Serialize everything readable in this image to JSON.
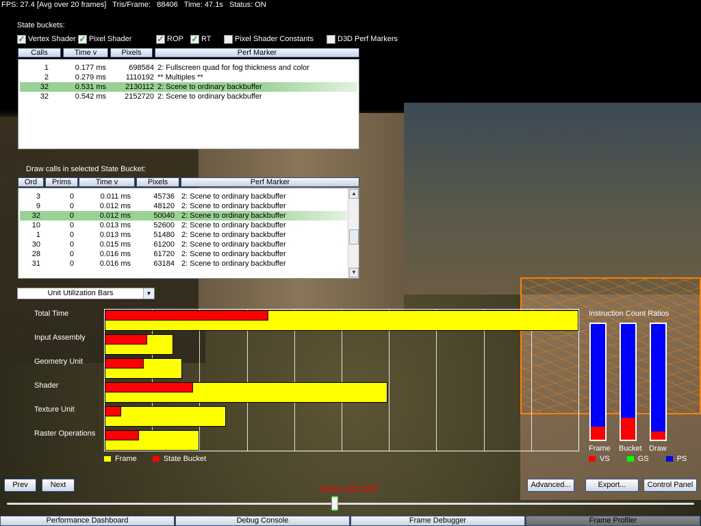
{
  "status_bar": {
    "text": "FPS: 27.4 [Avg over 20 frames]   Tris/Frame:   88406   Time: 47.1s   Status: ON"
  },
  "state_buckets": {
    "label": "State buckets:",
    "filters": [
      {
        "label": "Vertex Shader",
        "checked": true
      },
      {
        "label": "Pixel Shader",
        "checked": true
      },
      {
        "label": "ROP",
        "checked": true
      },
      {
        "label": "RT",
        "checked": true
      },
      {
        "label": "Pixel Shader Constants",
        "checked": false
      },
      {
        "label": "D3D Perf Markers",
        "checked": false
      }
    ],
    "columns": [
      "Calls",
      "Time  v",
      "Pixels",
      "Perf Marker"
    ],
    "rows": [
      {
        "calls": "1",
        "time": "0.177 ms",
        "pixels": "698584",
        "marker": "2: Fullscreen quad for fog thickness and color"
      },
      {
        "calls": "2",
        "time": "0.279 ms",
        "pixels": "1110192",
        "marker": "** Multiples **"
      },
      {
        "calls": "32",
        "time": "0.531 ms",
        "pixels": "2130112",
        "marker": "2: Scene to ordinary backbuffer",
        "selected": true
      },
      {
        "calls": "32",
        "time": "0.542 ms",
        "pixels": "2152720",
        "marker": "2: Scene to ordinary backbuffer"
      }
    ]
  },
  "draw_calls": {
    "label": "Draw calls in selected State Bucket:",
    "columns": [
      "Ord",
      "Prims",
      "Time  v",
      "Pixels",
      "Perf Marker"
    ],
    "rows": [
      {
        "ord": "3",
        "prims": "0",
        "time": "0.011 ms",
        "pixels": "45736",
        "marker": "2: Scene to ordinary backbuffer"
      },
      {
        "ord": "9",
        "prims": "0",
        "time": "0.012 ms",
        "pixels": "48120",
        "marker": "2: Scene to ordinary backbuffer"
      },
      {
        "ord": "32",
        "prims": "0",
        "time": "0.012 ms",
        "pixels": "50040",
        "marker": "2: Scene to ordinary backbuffer",
        "selected": true
      },
      {
        "ord": "10",
        "prims": "0",
        "time": "0.013 ms",
        "pixels": "52600",
        "marker": "2: Scene to ordinary backbuffer"
      },
      {
        "ord": "1",
        "prims": "0",
        "time": "0.013 ms",
        "pixels": "51480",
        "marker": "2: Scene to ordinary backbuffer"
      },
      {
        "ord": "30",
        "prims": "0",
        "time": "0.015 ms",
        "pixels": "61200",
        "marker": "2: Scene to ordinary backbuffer"
      },
      {
        "ord": "28",
        "prims": "0",
        "time": "0.016 ms",
        "pixels": "61720",
        "marker": "2: Scene to ordinary backbuffer"
      },
      {
        "ord": "31",
        "prims": "0",
        "time": "0.016 ms",
        "pixels": "63184",
        "marker": "2: Scene to ordinary backbuffer"
      }
    ]
  },
  "view_select": {
    "value": "Unit Utilization Bars"
  },
  "chart_data": [
    {
      "type": "bar",
      "orientation": "horizontal",
      "categories": [
        "Total Time",
        "Input Assembly",
        "Geometry Unit",
        "Shader",
        "Texture Unit",
        "Raster Operations"
      ],
      "series": [
        {
          "name": "Frame",
          "color": "#ffff00",
          "values": [
            100,
            14.4,
            16.4,
            59.7,
            25.6,
            19.9
          ]
        },
        {
          "name": "State Bucket",
          "color": "#ff0000",
          "values": [
            34.6,
            8.9,
            8.2,
            18.6,
            3.5,
            7.2
          ]
        }
      ],
      "xlim": [
        0,
        100
      ],
      "grid": true,
      "legend": "bottom-left"
    },
    {
      "type": "bar",
      "stacked": true,
      "title": "Instruction Count Ratios",
      "categories": [
        "Frame",
        "Bucket",
        "Draw"
      ],
      "series": [
        {
          "name": "VS",
          "color": "#ff0000",
          "values": [
            11,
            19,
            7
          ]
        },
        {
          "name": "GS",
          "color": "#00ff00",
          "values": [
            0,
            0,
            0
          ]
        },
        {
          "name": "PS",
          "color": "#0000ff",
          "values": [
            89,
            81,
            93
          ]
        }
      ],
      "ylim": [
        0,
        100
      ],
      "legend": "bottom"
    }
  ],
  "navigation": {
    "prev": "Prev",
    "next": "Next",
    "advanced": "Advanced...",
    "export": "Export...",
    "control_panel": "Control Panel"
  },
  "draw_call_slider": {
    "label": "Draw Call 32/87",
    "current": 32,
    "total": 87,
    "label_color": "#ff0000"
  },
  "tabs": [
    {
      "label": "Performance Dashboard",
      "active": false
    },
    {
      "label": "Debug Console",
      "active": false
    },
    {
      "label": "Frame Debugger",
      "active": false
    },
    {
      "label": "Frame Profiler",
      "active": true
    }
  ]
}
